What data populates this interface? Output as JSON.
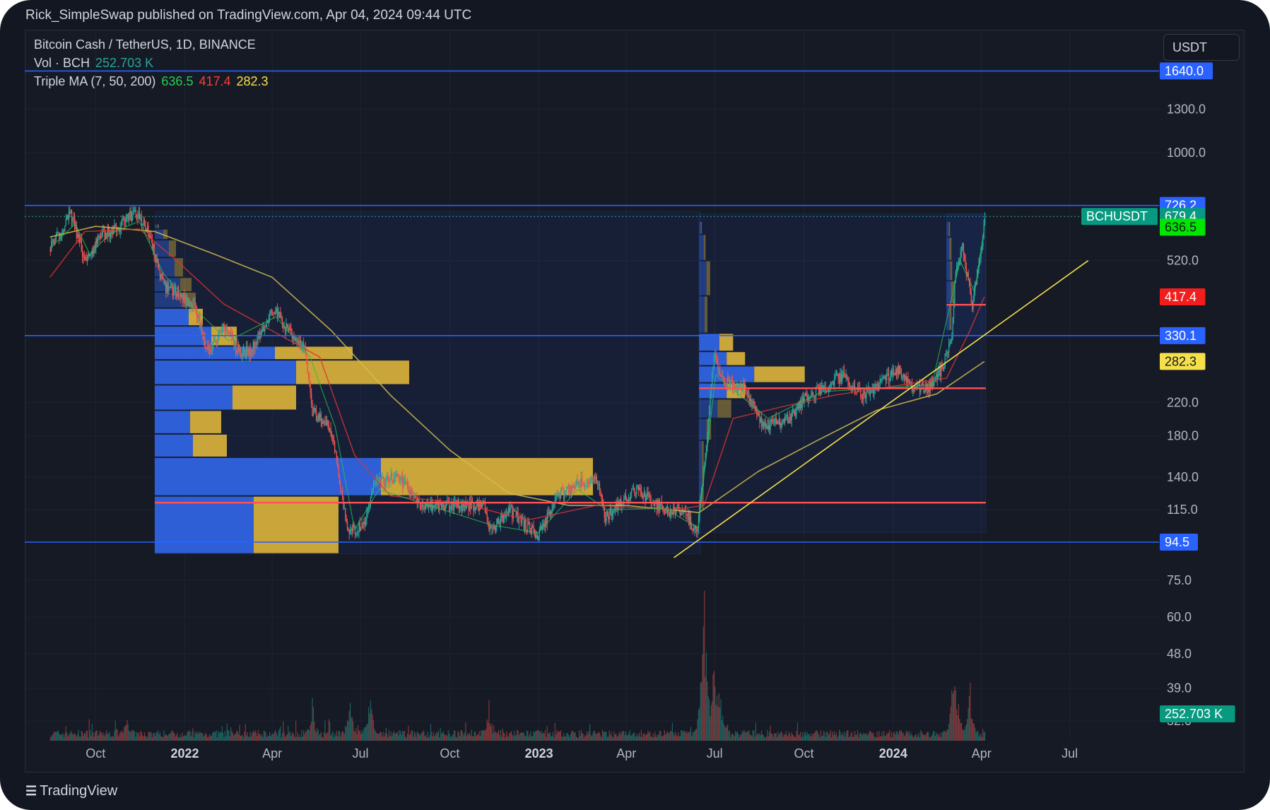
{
  "header": {
    "published_text": "Rick_SimpleSwap published on TradingView.com, Apr 04, 2024 09:44 UTC"
  },
  "legend": {
    "symbol": "Bitcoin Cash / TetherUS, 1D, BINANCE",
    "vol_label": "Vol · BCH",
    "vol_value": "252.703 K",
    "ma_label": "Triple MA (7, 50, 200)",
    "ma7": "636.5",
    "ma50": "417.4",
    "ma200": "282.3"
  },
  "currency_button": "USDT",
  "brand": {
    "name": "TradingView"
  },
  "colors": {
    "background": "#131722",
    "up": "#26a69a",
    "down": "#ef5350",
    "ma7": "#22cc55",
    "ma50": "#ff3b3b",
    "ma200": "#f5e04a",
    "level_line": "#2962ff",
    "poc_line": "#ff5252",
    "trendline": "#f5e04a",
    "vp_buy": "#2f5fd6",
    "vp_sell": "#c9a53a"
  },
  "chart_data": {
    "type": "candlestick",
    "symbol": "BCHUSDT",
    "interval": "1D",
    "exchange": "BINANCE",
    "scale": "log",
    "x_ticks": [
      "Oct",
      "2022",
      "Apr",
      "Jul",
      "Oct",
      "2023",
      "Apr",
      "Jul",
      "Oct",
      "2024",
      "Apr",
      "Jul"
    ],
    "x_ticks_bold": [
      "2022",
      "2023",
      "2024"
    ],
    "y_ticks": [
      "1300.0",
      "1000.0",
      "520.0",
      "220.0",
      "180.0",
      "140.0",
      "115.0",
      "75.0",
      "60.0",
      "48.0",
      "39.0",
      "32.0"
    ],
    "y_tick_values": [
      1300,
      1000,
      520,
      220,
      180,
      140,
      115,
      75,
      60,
      48,
      39,
      32
    ],
    "price_labels": [
      {
        "text": "1640.0",
        "value": 1640,
        "color": "#2962ff"
      },
      {
        "text": "726.2",
        "value": 726.2,
        "color": "#2962ff"
      },
      {
        "text": "679.4",
        "value": 679.4,
        "color": "#089981"
      },
      {
        "text": "636.5",
        "value": 636.5,
        "color": "#00e600"
      },
      {
        "text": "417.4",
        "value": 417.4,
        "color": "#f21d1d"
      },
      {
        "text": "330.1",
        "value": 330.1,
        "color": "#2962ff"
      },
      {
        "text": "282.3",
        "value": 282.3,
        "color": "#f5e04a"
      },
      {
        "text": "94.5",
        "value": 94.5,
        "color": "#2962ff"
      },
      {
        "text": "252.703 K",
        "value": 252703,
        "color": "#089981",
        "pane": "volume"
      }
    ],
    "symbol_tag": "BCHUSDT",
    "horizontal_levels": [
      1640,
      726.2,
      330.1,
      94.5
    ],
    "poc_levels": [
      {
        "from": "2021-12-01",
        "to": "2024-04-04",
        "price": 120
      },
      {
        "from": "2023-06-15",
        "to": "2024-04-04",
        "price": 240
      },
      {
        "from": "2024-02-25",
        "to": "2024-04-04",
        "price": 398
      }
    ],
    "trendline": {
      "from": {
        "date": "2023-05-20",
        "price": 86
      },
      "to": {
        "date": "2024-07-20",
        "price": 520
      }
    },
    "price_path": [
      [
        "2021-08-15",
        560
      ],
      [
        "2021-09-05",
        690
      ],
      [
        "2021-09-20",
        520
      ],
      [
        "2021-10-05",
        600
      ],
      [
        "2021-10-25",
        640
      ],
      [
        "2021-11-10",
        700
      ],
      [
        "2021-11-25",
        610
      ],
      [
        "2021-12-10",
        440
      ],
      [
        "2021-12-25",
        430
      ],
      [
        "2022-01-10",
        390
      ],
      [
        "2022-01-25",
        300
      ],
      [
        "2022-02-10",
        350
      ],
      [
        "2022-02-25",
        300
      ],
      [
        "2022-03-10",
        300
      ],
      [
        "2022-04-01",
        390
      ],
      [
        "2022-04-20",
        330
      ],
      [
        "2022-05-05",
        300
      ],
      [
        "2022-05-12",
        210
      ],
      [
        "2022-06-01",
        185
      ],
      [
        "2022-06-18",
        100
      ],
      [
        "2022-07-05",
        105
      ],
      [
        "2022-07-15",
        135
      ],
      [
        "2022-08-10",
        140
      ],
      [
        "2022-09-01",
        118
      ],
      [
        "2022-10-01",
        118
      ],
      [
        "2022-11-05",
        118
      ],
      [
        "2022-11-10",
        100
      ],
      [
        "2022-12-01",
        115
      ],
      [
        "2022-12-30",
        98
      ],
      [
        "2023-01-20",
        125
      ],
      [
        "2023-02-10",
        135
      ],
      [
        "2023-03-01",
        138
      ],
      [
        "2023-03-10",
        110
      ],
      [
        "2023-04-10",
        130
      ],
      [
        "2023-05-10",
        115
      ],
      [
        "2023-06-01",
        112
      ],
      [
        "2023-06-12",
        100
      ],
      [
        "2023-06-20",
        150
      ],
      [
        "2023-06-30",
        290
      ],
      [
        "2023-07-10",
        250
      ],
      [
        "2023-08-01",
        240
      ],
      [
        "2023-08-20",
        190
      ],
      [
        "2023-09-15",
        200
      ],
      [
        "2023-10-01",
        225
      ],
      [
        "2023-10-20",
        240
      ],
      [
        "2023-11-10",
        260
      ],
      [
        "2023-12-01",
        230
      ],
      [
        "2023-12-20",
        250
      ],
      [
        "2024-01-05",
        270
      ],
      [
        "2024-01-20",
        240
      ],
      [
        "2024-02-05",
        240
      ],
      [
        "2024-02-20",
        270
      ],
      [
        "2024-03-01",
        330
      ],
      [
        "2024-03-05",
        500
      ],
      [
        "2024-03-12",
        560
      ],
      [
        "2024-03-22",
        400
      ],
      [
        "2024-04-02",
        600
      ],
      [
        "2024-04-04",
        679.4
      ]
    ],
    "ma7": [
      [
        "2021-08-15",
        560
      ],
      [
        "2021-09-10",
        650
      ],
      [
        "2021-09-25",
        540
      ],
      [
        "2021-10-15",
        610
      ],
      [
        "2021-11-15",
        660
      ],
      [
        "2021-12-10",
        480
      ],
      [
        "2022-01-15",
        380
      ],
      [
        "2022-02-15",
        320
      ],
      [
        "2022-04-05",
        370
      ],
      [
        "2022-05-10",
        290
      ],
      [
        "2022-06-05",
        190
      ],
      [
        "2022-06-25",
        102
      ],
      [
        "2022-07-20",
        130
      ],
      [
        "2022-09-10",
        118
      ],
      [
        "2022-11-12",
        105
      ],
      [
        "2022-12-31",
        100
      ],
      [
        "2023-02-10",
        130
      ],
      [
        "2023-03-12",
        115
      ],
      [
        "2023-05-10",
        116
      ],
      [
        "2023-06-14",
        103
      ],
      [
        "2023-07-02",
        260
      ],
      [
        "2023-08-25",
        200
      ],
      [
        "2023-10-20",
        235
      ],
      [
        "2023-12-15",
        240
      ],
      [
        "2024-02-10",
        245
      ],
      [
        "2024-03-10",
        520
      ],
      [
        "2024-03-25",
        430
      ],
      [
        "2024-04-04",
        636.5
      ]
    ],
    "ma50": [
      [
        "2021-08-15",
        470
      ],
      [
        "2021-09-20",
        620
      ],
      [
        "2021-11-15",
        630
      ],
      [
        "2021-12-20",
        530
      ],
      [
        "2022-02-10",
        400
      ],
      [
        "2022-04-10",
        330
      ],
      [
        "2022-05-20",
        290
      ],
      [
        "2022-06-25",
        160
      ],
      [
        "2022-08-01",
        125
      ],
      [
        "2022-10-10",
        120
      ],
      [
        "2022-12-20",
        108
      ],
      [
        "2023-03-01",
        118
      ],
      [
        "2023-05-20",
        115
      ],
      [
        "2023-06-20",
        118
      ],
      [
        "2023-07-20",
        200
      ],
      [
        "2023-09-10",
        215
      ],
      [
        "2023-11-01",
        230
      ],
      [
        "2024-01-10",
        245
      ],
      [
        "2024-02-25",
        255
      ],
      [
        "2024-03-20",
        340
      ],
      [
        "2024-04-04",
        417.4
      ]
    ],
    "ma200": [
      [
        "2021-08-15",
        600
      ],
      [
        "2021-10-01",
        640
      ],
      [
        "2021-12-01",
        620
      ],
      [
        "2022-02-01",
        540
      ],
      [
        "2022-04-01",
        470
      ],
      [
        "2022-06-01",
        340
      ],
      [
        "2022-08-01",
        230
      ],
      [
        "2022-10-01",
        165
      ],
      [
        "2022-12-01",
        127
      ],
      [
        "2023-02-01",
        118
      ],
      [
        "2023-04-01",
        118
      ],
      [
        "2023-06-15",
        113
      ],
      [
        "2023-08-15",
        145
      ],
      [
        "2023-10-15",
        175
      ],
      [
        "2023-12-15",
        210
      ],
      [
        "2024-02-15",
        232
      ],
      [
        "2024-04-04",
        282.3
      ]
    ],
    "volume_profiles": [
      {
        "range": [
          "2021-12-01",
          "2023-06-15"
        ],
        "bins": [
          [
            630,
            650,
            2,
            1
          ],
          [
            590,
            630,
            6,
            3
          ],
          [
            530,
            590,
            10,
            5
          ],
          [
            470,
            530,
            14,
            6
          ],
          [
            430,
            470,
            18,
            8
          ],
          [
            390,
            430,
            20,
            9
          ],
          [
            350,
            390,
            24,
            10
          ],
          [
            310,
            350,
            40,
            18
          ],
          [
            285,
            310,
            85,
            55
          ],
          [
            245,
            285,
            100,
            80
          ],
          [
            210,
            245,
            55,
            45
          ],
          [
            182,
            210,
            25,
            22
          ],
          [
            158,
            182,
            27,
            24
          ],
          [
            125,
            158,
            160,
            150
          ],
          [
            88,
            125,
            70,
            60
          ]
        ]
      },
      {
        "range": [
          "2023-06-15",
          "2024-04-04"
        ],
        "bins": [
          [
            610,
            660,
            2,
            1
          ],
          [
            520,
            610,
            5,
            2
          ],
          [
            420,
            520,
            8,
            4
          ],
          [
            335,
            420,
            6,
            3
          ],
          [
            300,
            335,
            22,
            15
          ],
          [
            275,
            300,
            30,
            20
          ],
          [
            248,
            275,
            60,
            55
          ],
          [
            225,
            248,
            30,
            20
          ],
          [
            200,
            225,
            20,
            15
          ],
          [
            175,
            200,
            8,
            5
          ],
          [
            115,
            175,
            3,
            2
          ]
        ]
      },
      {
        "range": [
          "2024-02-25",
          "2024-04-04"
        ],
        "bins": [
          [
            600,
            660,
            3,
            2
          ],
          [
            520,
            600,
            4,
            3
          ],
          [
            460,
            520,
            5,
            3
          ],
          [
            400,
            460,
            6,
            5
          ],
          [
            340,
            400,
            4,
            3
          ]
        ]
      }
    ],
    "volume_spikes": [
      [
        "2021-11-01",
        0.18
      ],
      [
        "2022-05-12",
        0.28
      ],
      [
        "2022-06-20",
        0.34
      ],
      [
        "2022-07-10",
        0.33
      ],
      [
        "2022-11-10",
        0.24
      ],
      [
        "2023-06-20",
        1.0
      ],
      [
        "2023-06-30",
        0.56
      ],
      [
        "2023-07-05",
        0.45
      ],
      [
        "2024-03-04",
        0.63
      ],
      [
        "2024-03-20",
        0.36
      ]
    ]
  }
}
